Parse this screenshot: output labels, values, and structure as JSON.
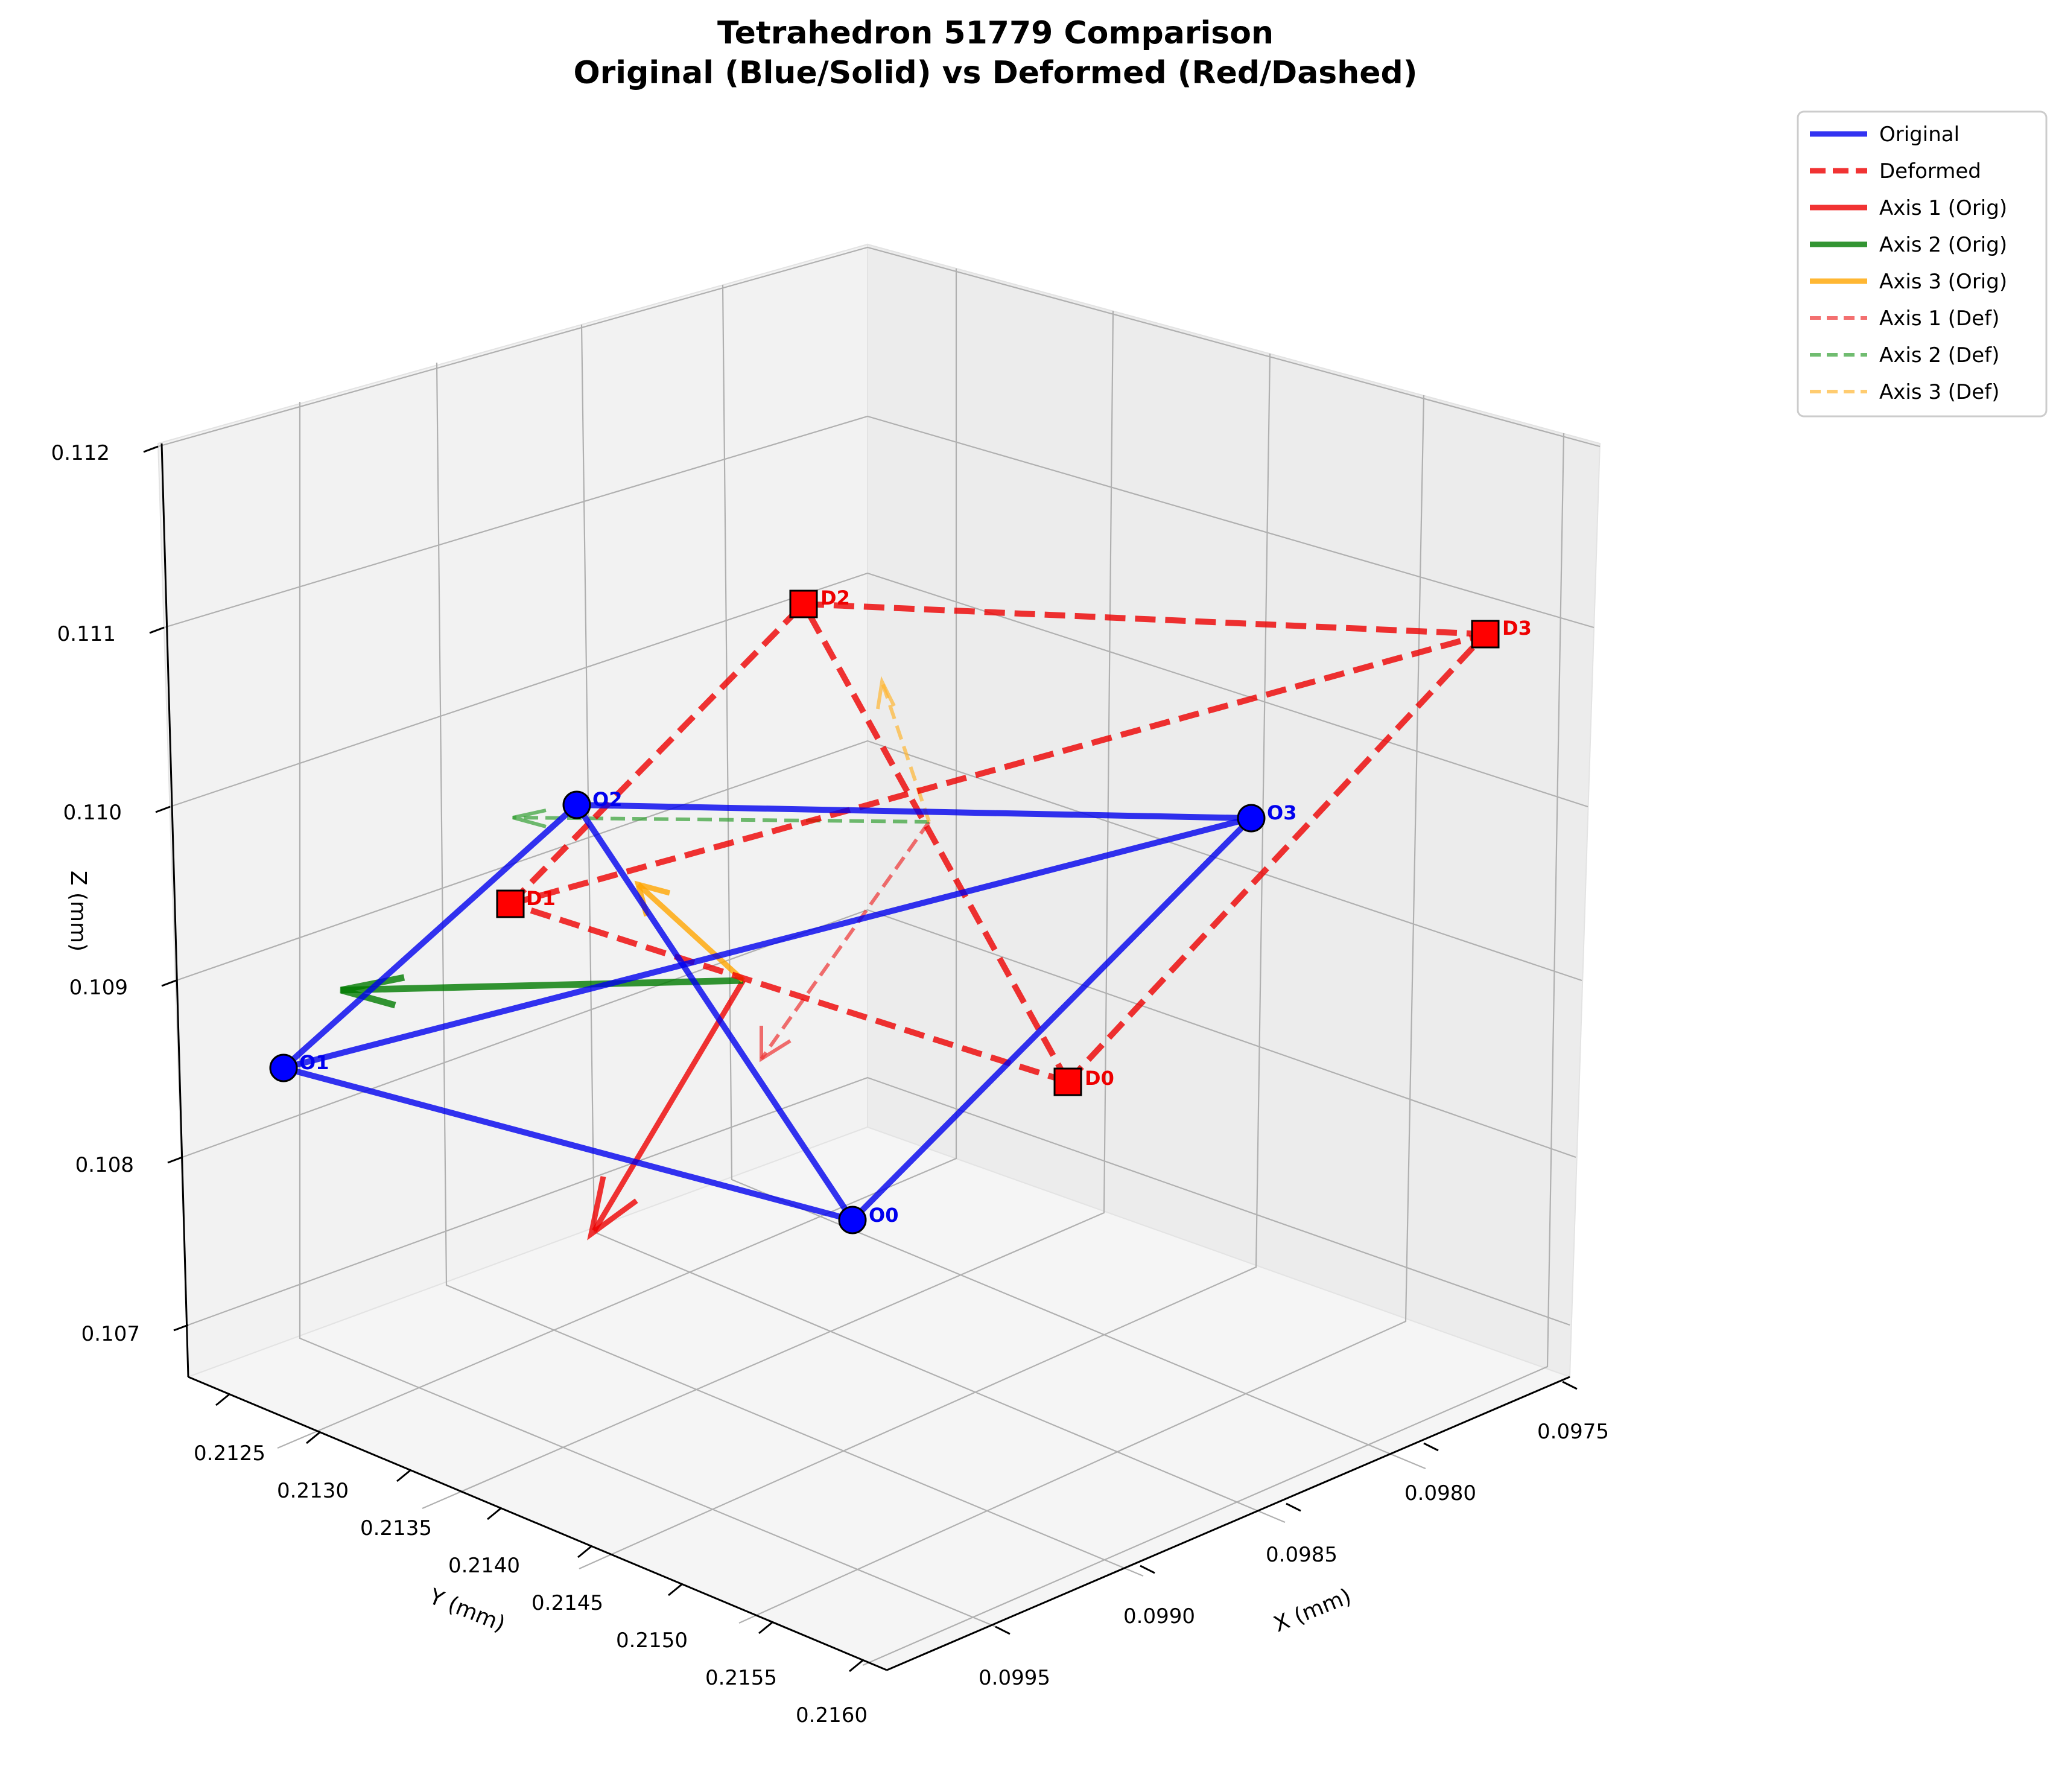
{
  "chart_data": {
    "type": "3d-line",
    "title_line1": "Tetrahedron 51779 Comparison",
    "title_line2": "Original (Blue/Solid) vs Deformed (Red/Dashed)",
    "xlabel": "X (mm)",
    "ylabel": "Y (mm)",
    "zlabel": "Z (mm)",
    "xticks": [
      "0.0975",
      "0.0980",
      "0.0985",
      "0.0990",
      "0.0995"
    ],
    "yticks": [
      "0.2125",
      "0.2130",
      "0.2135",
      "0.2140",
      "0.2145",
      "0.2150",
      "0.2155",
      "0.2160"
    ],
    "zticks": [
      "0.107",
      "0.108",
      "0.109",
      "0.110",
      "0.111",
      "0.112"
    ],
    "grid": true,
    "legend_placement": "outside-top-right",
    "legend": [
      {
        "label": "Original",
        "color": "#0000ee",
        "style": "solid",
        "width": 9
      },
      {
        "label": "Deformed",
        "color": "#ee0000",
        "style": "dashed",
        "width": 9
      },
      {
        "label": "Axis 1 (Orig)",
        "color": "#ee0000",
        "style": "solid",
        "width": 9
      },
      {
        "label": "Axis 2 (Orig)",
        "color": "#007a00",
        "style": "solid",
        "width": 9
      },
      {
        "label": "Axis 3 (Orig)",
        "color": "#ffa500",
        "style": "solid",
        "width": 9
      },
      {
        "label": "Axis 1 (Def)",
        "color": "#ee3333",
        "style": "dashed",
        "width": 6
      },
      {
        "label": "Axis 2 (Def)",
        "color": "#33a033",
        "style": "dashed",
        "width": 6
      },
      {
        "label": "Axis 3 (Def)",
        "color": "#ffb733",
        "style": "dashed",
        "width": 6
      }
    ],
    "original_vertices": [
      {
        "label": "O0"
      },
      {
        "label": "O1"
      },
      {
        "label": "O2"
      },
      {
        "label": "O3"
      }
    ],
    "deformed_vertices": [
      {
        "label": "D0"
      },
      {
        "label": "D1"
      },
      {
        "label": "D2"
      },
      {
        "label": "D3"
      }
    ],
    "colors": {
      "original": "#0000ee",
      "deformed": "#ee0000",
      "axis1": "#ee0000",
      "axis2": "#007a00",
      "axis3": "#ffa500"
    }
  }
}
